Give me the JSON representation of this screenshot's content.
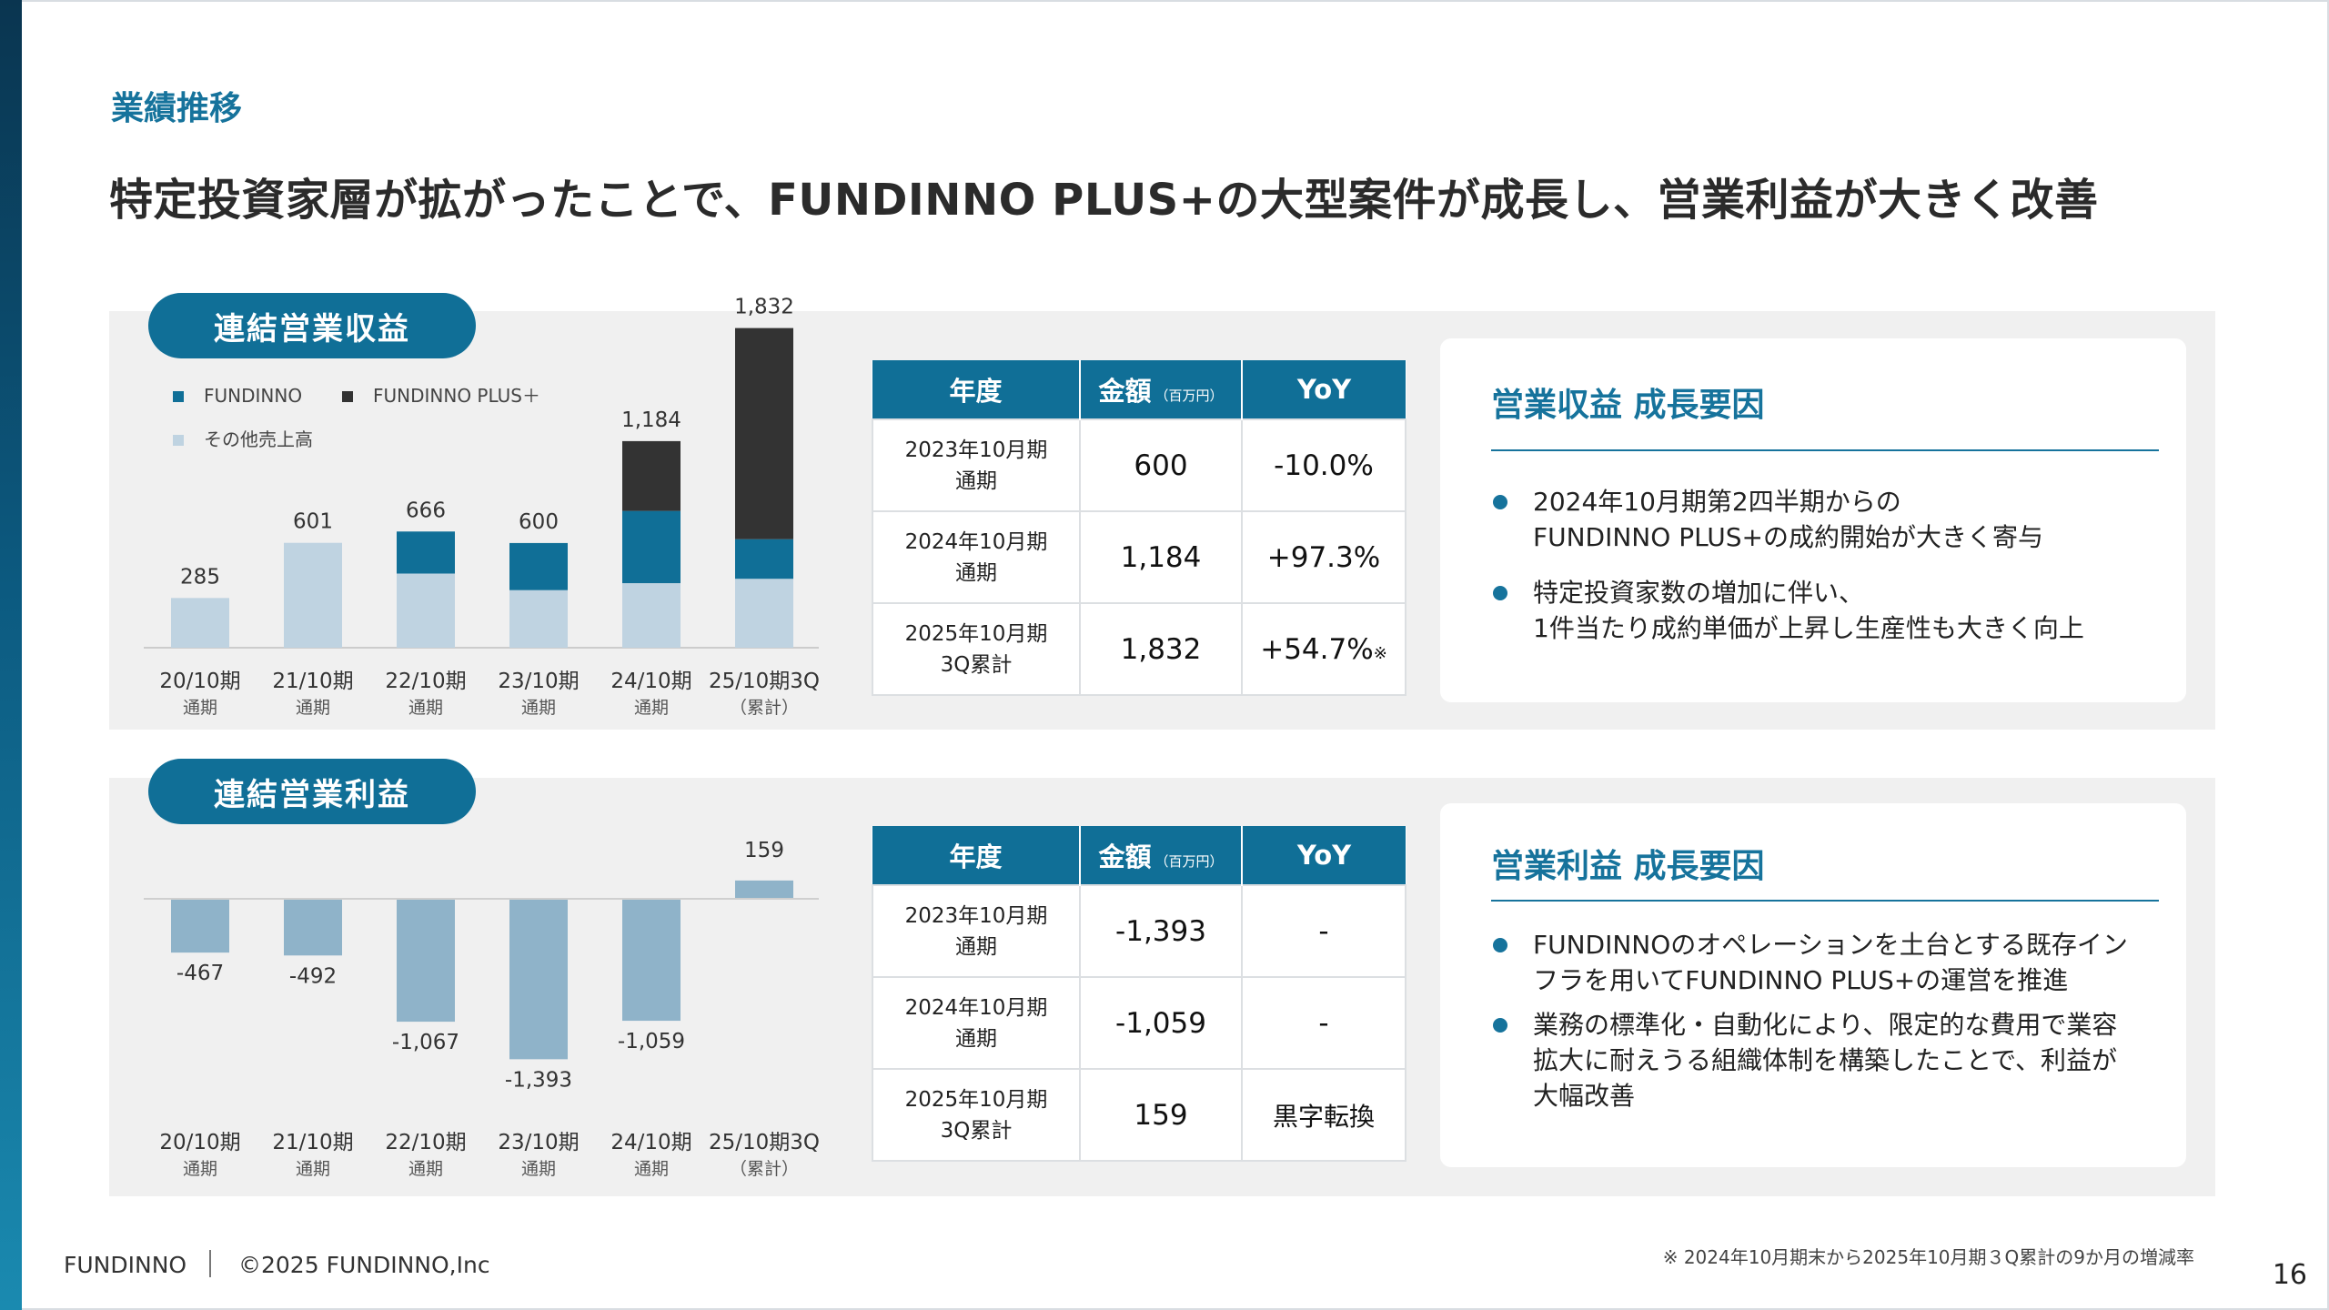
{
  "section_label": "業績推移",
  "headline": "特定投資家層が拡がったことで、FUNDINNO PLUS+の大型案件が成長し、営業利益が大きく改善",
  "revenue": {
    "pill": "連結営業収益",
    "table": {
      "headers": [
        "年度",
        "金額",
        "（百万円）",
        "YoY"
      ],
      "rows": [
        {
          "year1": "2023年10月期",
          "year2": "通期",
          "amount": "600",
          "yoy": "-10.0%",
          "mark": ""
        },
        {
          "year1": "2024年10月期",
          "year2": "通期",
          "amount": "1,184",
          "yoy": "+97.3%",
          "mark": ""
        },
        {
          "year1": "2025年10月期",
          "year2": "3Q累計",
          "amount": "1,832",
          "yoy": "+54.7%",
          "mark": "※"
        }
      ]
    },
    "card": {
      "title": "営業収益 成長要因",
      "bullets": [
        [
          "2024年10月期第2四半期からの",
          "FUNDINNO PLUS+の成約開始が大きく寄与"
        ],
        [
          "特定投資家数の増加に伴い、",
          "1件当たり成約単価が上昇し生産性も大きく向上"
        ]
      ]
    }
  },
  "profit": {
    "pill": "連結営業利益",
    "table": {
      "headers": [
        "年度",
        "金額",
        "（百万円）",
        "YoY"
      ],
      "rows": [
        {
          "year1": "2023年10月期",
          "year2": "通期",
          "amount": "-1,393",
          "yoy": "-",
          "mark": ""
        },
        {
          "year1": "2024年10月期",
          "year2": "通期",
          "amount": "-1,059",
          "yoy": "-",
          "mark": ""
        },
        {
          "year1": "2025年10月期",
          "year2": "3Q累計",
          "amount": "159",
          "yoy": "黒字転換",
          "mark": ""
        }
      ]
    },
    "card": {
      "title": "営業利益 成長要因",
      "bullets": [
        [
          "FUNDINNOのオペレーションを土台とする既存イン",
          "フラを用いてFUNDINNO PLUS+の運営を推進"
        ],
        [
          "業務の標準化・自動化により、限定的な費用で業容",
          "拡大に耐えうる組織体制を構築したことで、利益が",
          "大幅改善"
        ]
      ]
    }
  },
  "chart_data": [
    {
      "type": "bar",
      "stacked": true,
      "categories": [
        "20/10期",
        "21/10期",
        "22/10期",
        "23/10期",
        "24/10期",
        "25/10期3Q"
      ],
      "category_sublabels": [
        "通期",
        "通期",
        "通期",
        "通期",
        "通期",
        "（累計）"
      ],
      "series": [
        {
          "name": "その他売上高",
          "color": "#bfd3e1",
          "values": [
            285,
            601,
            425,
            330,
            370,
            395
          ]
        },
        {
          "name": "FUNDINNO",
          "color": "#106f97",
          "values": [
            0,
            0,
            241,
            270,
            414,
            227
          ]
        },
        {
          "name": "FUNDINNO PLUS＋",
          "color": "#333333",
          "values": [
            0,
            0,
            0,
            0,
            400,
            1210
          ]
        }
      ],
      "totals": [
        "285",
        "601",
        "666",
        "600",
        "1,184",
        "1,832"
      ],
      "legend_order": [
        1,
        2,
        0
      ],
      "legend_placement": "top-left"
    },
    {
      "type": "bar",
      "categories": [
        "20/10期",
        "21/10期",
        "22/10期",
        "23/10期",
        "24/10期",
        "25/10期3Q"
      ],
      "category_sublabels": [
        "通期",
        "通期",
        "通期",
        "通期",
        "通期",
        "（累計）"
      ],
      "series": [
        {
          "color": "#8fb3c9",
          "values": [
            -467,
            -492,
            -1067,
            -1393,
            -1059,
            159
          ]
        }
      ],
      "value_labels": [
        "-467",
        "-492",
        "-1,067",
        "-1,393",
        "-1,059",
        "159"
      ]
    }
  ],
  "footer": {
    "brand": "FUNDINNO",
    "copyright": "©2025 FUNDINNO,Inc",
    "footnote": "※ 2024年10月期末から2025年10月期３Q累計の9か月の増減率",
    "page": "16"
  }
}
